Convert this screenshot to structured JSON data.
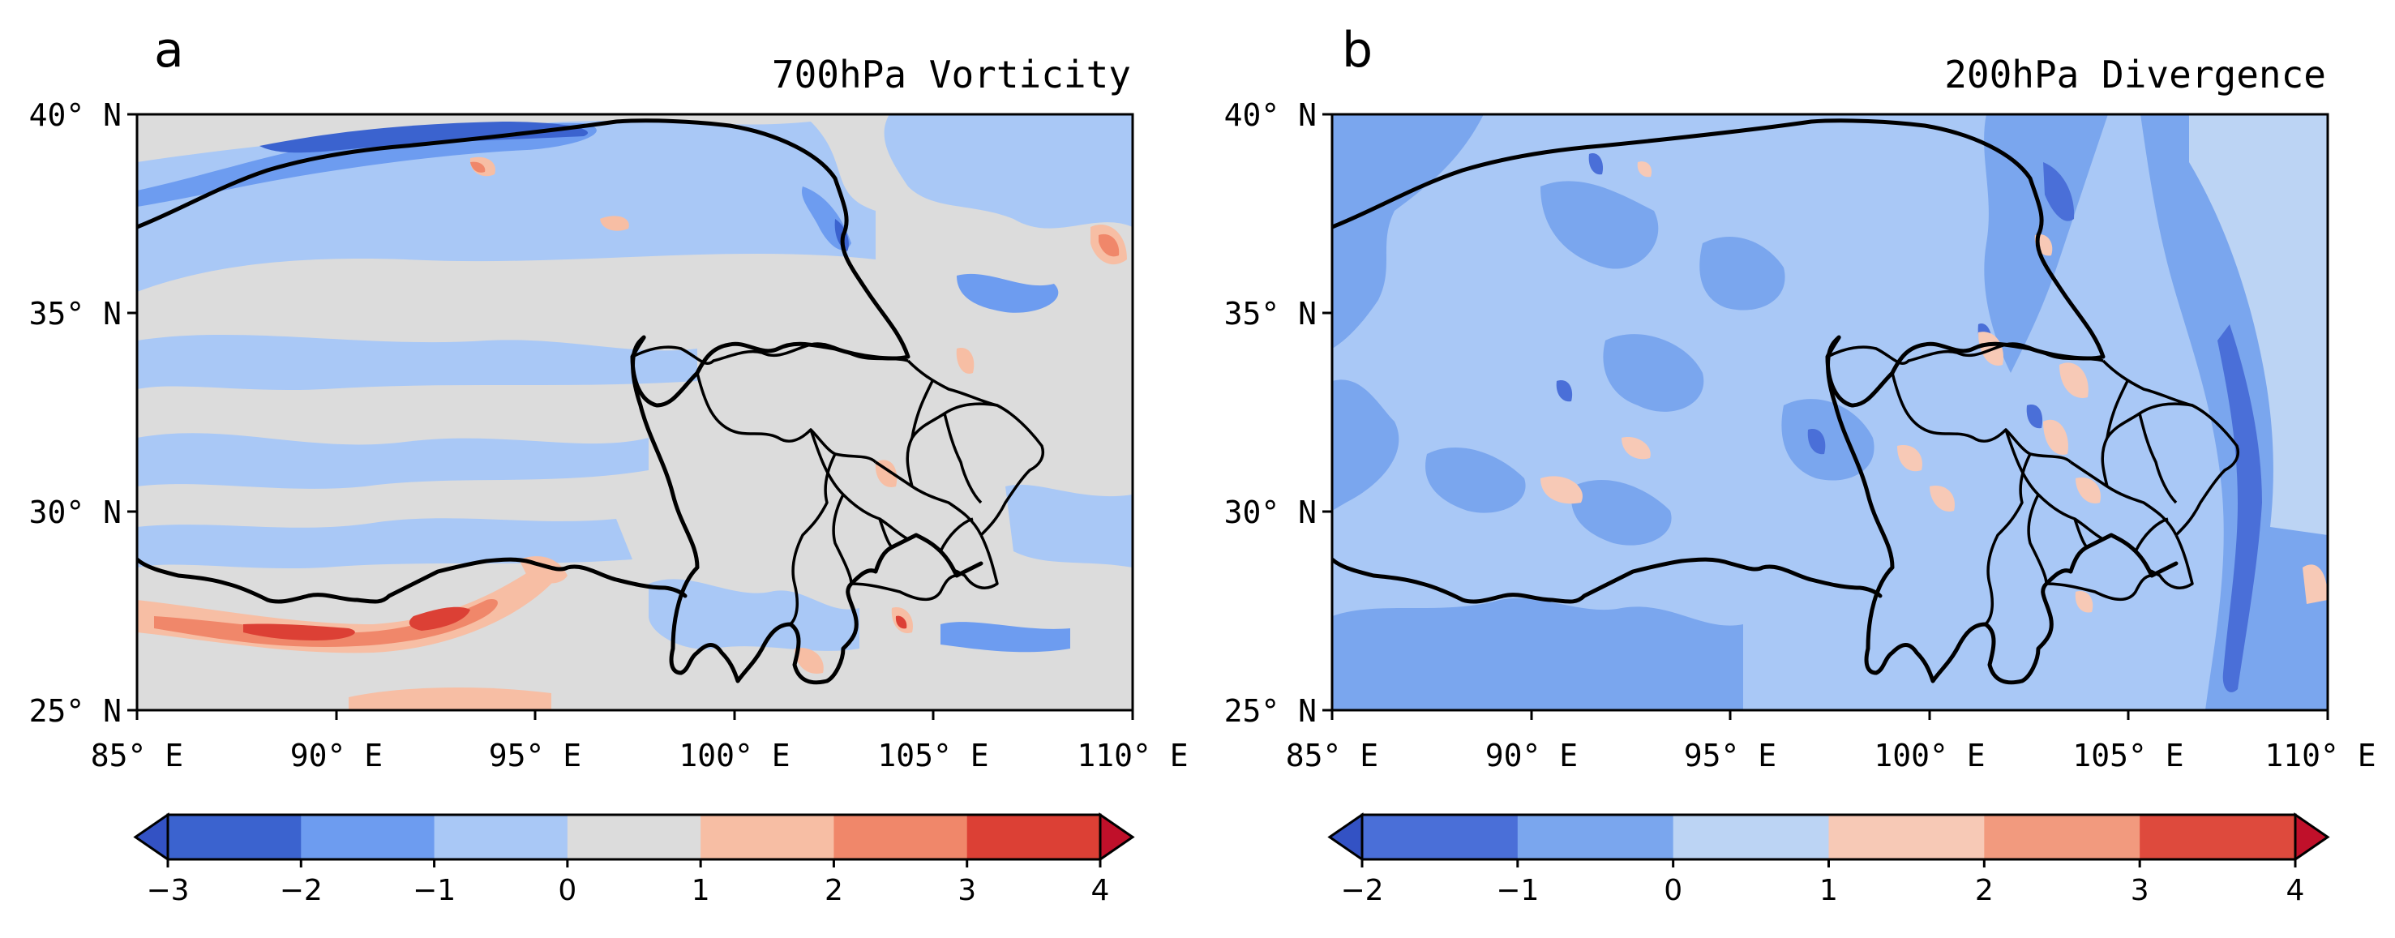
{
  "panels": [
    {
      "letter": "a",
      "title": "700hPa Vorticity",
      "x_ticks": [
        "85° E",
        "90° E",
        "95° E",
        "100° E",
        "105° E",
        "110° E"
      ],
      "y_ticks": [
        "40° N",
        "35° N",
        "30° N",
        "25° N"
      ],
      "colorbar": {
        "labels": [
          "-3",
          "-2",
          "-1",
          "0",
          "1",
          "2",
          "3",
          "4"
        ],
        "colors": [
          "#3b63cf",
          "#6d9cf0",
          "#a9c8f6",
          "#dcdcdc",
          "#f7bea4",
          "#f0876a",
          "#dc4035",
          "#c4122a"
        ],
        "under_color": "#3352c4",
        "over_color": "#c0102a"
      },
      "background_color": "#dcdcdc"
    },
    {
      "letter": "b",
      "title": "200hPa Divergence",
      "x_ticks": [
        "85° E",
        "90° E",
        "95° E",
        "100° E",
        "105° E",
        "110° E"
      ],
      "y_ticks": [
        "40° N",
        "35° N",
        "30° N",
        "25° N"
      ],
      "colorbar": {
        "labels": [
          "-2",
          "-1",
          "0",
          "1",
          "2",
          "3",
          "4"
        ],
        "colors": [
          "#4a6fd8",
          "#7aa6ee",
          "#bcd4f4",
          "#f7c9b6",
          "#f29a7e",
          "#de4a3d",
          "#c4122a"
        ],
        "under_color": "#3352c4",
        "over_color": "#c0102a"
      },
      "background_color": "#a9c8f6"
    }
  ],
  "lon_range": [
    85,
    110
  ],
  "lat_range": [
    25,
    40
  ]
}
